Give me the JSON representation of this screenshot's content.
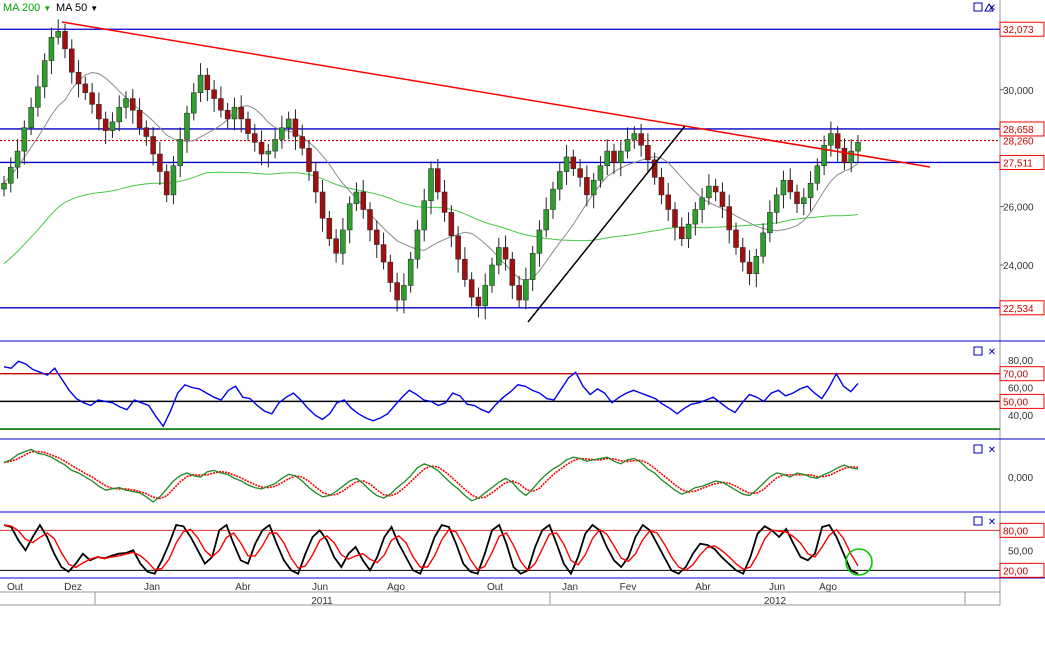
{
  "header": {
    "ma200_label": "MA 200",
    "ma50_label": "MA 50"
  },
  "colors": {
    "candle_up": "#2e9e2e",
    "candle_down": "#a01010",
    "ma200": "#44cc44",
    "ma50": "#8a8a8a",
    "trend_line": "#ff0000",
    "support_line": "#000000",
    "level_line": "#0000cc",
    "rsi_line": "#0000ee",
    "macd_line": "#228822",
    "signal_line": "#ff0000",
    "stoch_k": "#000000",
    "stoch_d": "#ff0000",
    "highlight_circle": "#00cc00",
    "label_border": "#ff0000"
  },
  "chart_data": [
    {
      "type": "candlestick",
      "ylim": [
        21500,
        32800
      ],
      "yticks": [
        "30,000",
        "28,260",
        "26,000",
        "24,000"
      ],
      "level_labels": [
        {
          "value": 32073,
          "label": "32,073"
        },
        {
          "value": 28658,
          "label": "28,658"
        },
        {
          "value": 27511,
          "label": "27,511"
        },
        {
          "value": 22534,
          "label": "22,534"
        }
      ],
      "reference_line": {
        "value": 28260,
        "label": "28,260"
      },
      "series": [
        {
          "name": "MA 200",
          "values": []
        },
        {
          "name": "MA 50",
          "values": []
        }
      ],
      "price_series": [
        26800,
        27350,
        27900,
        28700,
        29400,
        30100,
        31000,
        31800,
        32000,
        31400,
        30600,
        30200,
        29900,
        29500,
        29000,
        28600,
        28900,
        29400,
        29700,
        29300,
        28700,
        28400,
        27800,
        27200,
        26400,
        27400,
        28300,
        29200,
        29900,
        30500,
        30000,
        29700,
        29300,
        29000,
        29400,
        29000,
        28500,
        28200,
        27800,
        27900,
        28300,
        28700,
        29000,
        28400,
        28000,
        27200,
        26500,
        25600,
        24900,
        24400,
        25200,
        26100,
        26500,
        25900,
        25200,
        24700,
        24100,
        23400,
        22800,
        23300,
        24200,
        25200,
        26200,
        27300,
        26500,
        25800,
        25000,
        24200,
        23500,
        22900,
        22600,
        23300,
        24000,
        24600,
        24200,
        23300,
        22800,
        23500,
        24400,
        25200,
        25900,
        26600,
        27200,
        27700,
        27300,
        27000,
        26400,
        26900,
        27400,
        27900,
        27500,
        27900,
        28300,
        28500,
        28100,
        27600,
        27000,
        26400,
        25900,
        25300,
        24900,
        25400,
        25900,
        26300,
        26700,
        26500,
        26000,
        25200,
        24600,
        24100,
        23700,
        24300,
        25100,
        25800,
        26400,
        26900,
        26500,
        26100,
        26300,
        26800,
        27400,
        28100,
        28500,
        28000,
        27500,
        27900,
        28200
      ]
    },
    {
      "type": "line",
      "ylim": [
        25,
        90
      ],
      "yticks": [
        "80,00",
        "60,00",
        "40,00"
      ],
      "level_labels": [
        "70,00",
        "50,00"
      ],
      "series": [
        {
          "name": "",
          "values": [
            75,
            74,
            79,
            77,
            73,
            71,
            69,
            74,
            66,
            58,
            52,
            49,
            47,
            51,
            50,
            49,
            46,
            44,
            51,
            49,
            47,
            39,
            32,
            43,
            56,
            62,
            60,
            59,
            56,
            53,
            51,
            58,
            61,
            53,
            52,
            47,
            43,
            41,
            49,
            53,
            56,
            51,
            45,
            40,
            37,
            41,
            49,
            51,
            45,
            41,
            38,
            36,
            38,
            41,
            47,
            53,
            58,
            55,
            51,
            50,
            47,
            49,
            56,
            54,
            48,
            47,
            44,
            42,
            48,
            53,
            57,
            62,
            61,
            58,
            56,
            52,
            51,
            59,
            67,
            71,
            61,
            55,
            59,
            56,
            49,
            53,
            56,
            58,
            56,
            54,
            52,
            48,
            45,
            41,
            45,
            48,
            49,
            51,
            53,
            49,
            45,
            42,
            49,
            55,
            53,
            50,
            56,
            58,
            54,
            56,
            59,
            61,
            56,
            52,
            60,
            70,
            61,
            57,
            63
          ]
        }
      ]
    },
    {
      "type": "line",
      "ylim": [
        -25,
        25
      ],
      "yticks": [
        "0,000"
      ],
      "series": [
        {
          "name": "",
          "values": [
            11,
            13,
            17,
            19,
            21,
            18,
            17,
            15,
            12,
            9,
            5,
            3,
            0,
            -3,
            -7,
            -10,
            -9,
            -8,
            -10,
            -11,
            -12,
            -15,
            -19,
            -15,
            -9,
            -3,
            1,
            3,
            1,
            0,
            4,
            5,
            3,
            2,
            -1,
            -3,
            -6,
            -8,
            -9,
            -7,
            -5,
            -1,
            2,
            1,
            -3,
            -8,
            -12,
            -15,
            -14,
            -11,
            -7,
            -3,
            -1,
            -5,
            -10,
            -14,
            -16,
            -13,
            -8,
            -4,
            1,
            7,
            10,
            8,
            5,
            0,
            -5,
            -9,
            -14,
            -18,
            -16,
            -12,
            -8,
            -4,
            -1,
            -4,
            -10,
            -14,
            -9,
            -3,
            2,
            6,
            9,
            13,
            15,
            14,
            12,
            13,
            14,
            15,
            12,
            10,
            13,
            14,
            11,
            6,
            3,
            -2,
            -6,
            -10,
            -13,
            -11,
            -8,
            -7,
            -5,
            -3,
            -4,
            -7,
            -10,
            -13,
            -14,
            -10,
            -5,
            0,
            3,
            2,
            0,
            3,
            2,
            0,
            -1,
            2,
            4,
            7,
            9,
            7,
            6
          ]
        }
      ]
    },
    {
      "type": "line",
      "ylim": [
        10,
        100
      ],
      "yticks": [
        "50,00"
      ],
      "level_labels": [
        "80,00",
        "20,00"
      ],
      "series": [
        {
          "name": "",
          "values": [
            88,
            85,
            65,
            50,
            70,
            88,
            70,
            45,
            25,
            18,
            30,
            45,
            35,
            40,
            38,
            42,
            45,
            46,
            50,
            30,
            18,
            15,
            35,
            60,
            88,
            86,
            70,
            50,
            30,
            40,
            80,
            88,
            60,
            35,
            30,
            60,
            80,
            88,
            60,
            35,
            20,
            15,
            45,
            70,
            80,
            65,
            40,
            25,
            45,
            55,
            35,
            20,
            40,
            70,
            85,
            60,
            40,
            20,
            15,
            40,
            70,
            88,
            85,
            60,
            30,
            18,
            15,
            45,
            80,
            88,
            60,
            25,
            15,
            20,
            55,
            80,
            88,
            60,
            30,
            15,
            40,
            75,
            88,
            80,
            55,
            35,
            25,
            40,
            70,
            88,
            80,
            60,
            40,
            20,
            15,
            25,
            45,
            60,
            58,
            52,
            40,
            30,
            20,
            15,
            40,
            75,
            86,
            80,
            70,
            82,
            60,
            40,
            35,
            45,
            85,
            88,
            70,
            45,
            20,
            15
          ]
        }
      ]
    }
  ],
  "x_axis": {
    "month_labels": [
      "Out",
      "Dez",
      "Jan",
      "Abr",
      "Jun",
      "Ago",
      "Out",
      "Jan",
      "Fev",
      "Abr",
      "Jun",
      "Ago"
    ],
    "year_labels": [
      "2011",
      "2012"
    ]
  }
}
